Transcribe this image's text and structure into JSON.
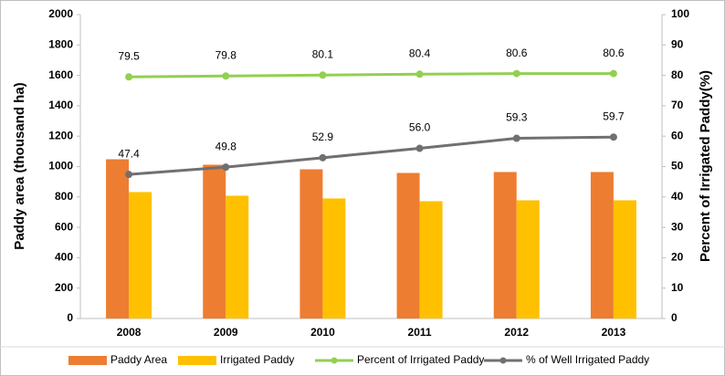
{
  "chart_data": {
    "type": "combo",
    "categories": [
      "2008",
      "2009",
      "2010",
      "2011",
      "2012",
      "2013"
    ],
    "ylabel": "Paddy area (thousand ha)",
    "y2label": "Percent of Irrigated Paddy(%)",
    "ylim": [
      0,
      2000
    ],
    "yticks": [
      0,
      200,
      400,
      600,
      800,
      1000,
      1200,
      1400,
      1600,
      1800,
      2000
    ],
    "y2lim": [
      0,
      100
    ],
    "y2ticks": [
      0,
      10,
      20,
      30,
      40,
      50,
      60,
      70,
      80,
      90,
      100
    ],
    "legend": "bottom",
    "series": [
      {
        "name": "Paddy Area",
        "type": "bar",
        "color": "#ed7d31",
        "values": [
          1048,
          1012,
          982,
          958,
          964,
          964
        ]
      },
      {
        "name": "Irrigated Paddy",
        "type": "bar",
        "color": "#ffc000",
        "values": [
          832,
          808,
          790,
          772,
          778,
          778
        ]
      },
      {
        "name": "Percent of Irrigated Paddy",
        "type": "line",
        "axis": "y2",
        "color": "#92d050",
        "values": [
          79.5,
          79.8,
          80.1,
          80.4,
          80.6,
          80.6
        ],
        "value_labels": [
          "79.5",
          "79.8",
          "80.1",
          "80.4",
          "80.6",
          "80.6"
        ]
      },
      {
        "name": "% of Well Irrigated Paddy",
        "type": "line",
        "axis": "y2",
        "color": "#707070",
        "values": [
          47.4,
          49.8,
          52.9,
          56.0,
          59.3,
          59.7
        ],
        "value_labels": [
          "47.4",
          "49.8",
          "52.9",
          "56.0",
          "59.3",
          "59.7"
        ]
      }
    ]
  }
}
